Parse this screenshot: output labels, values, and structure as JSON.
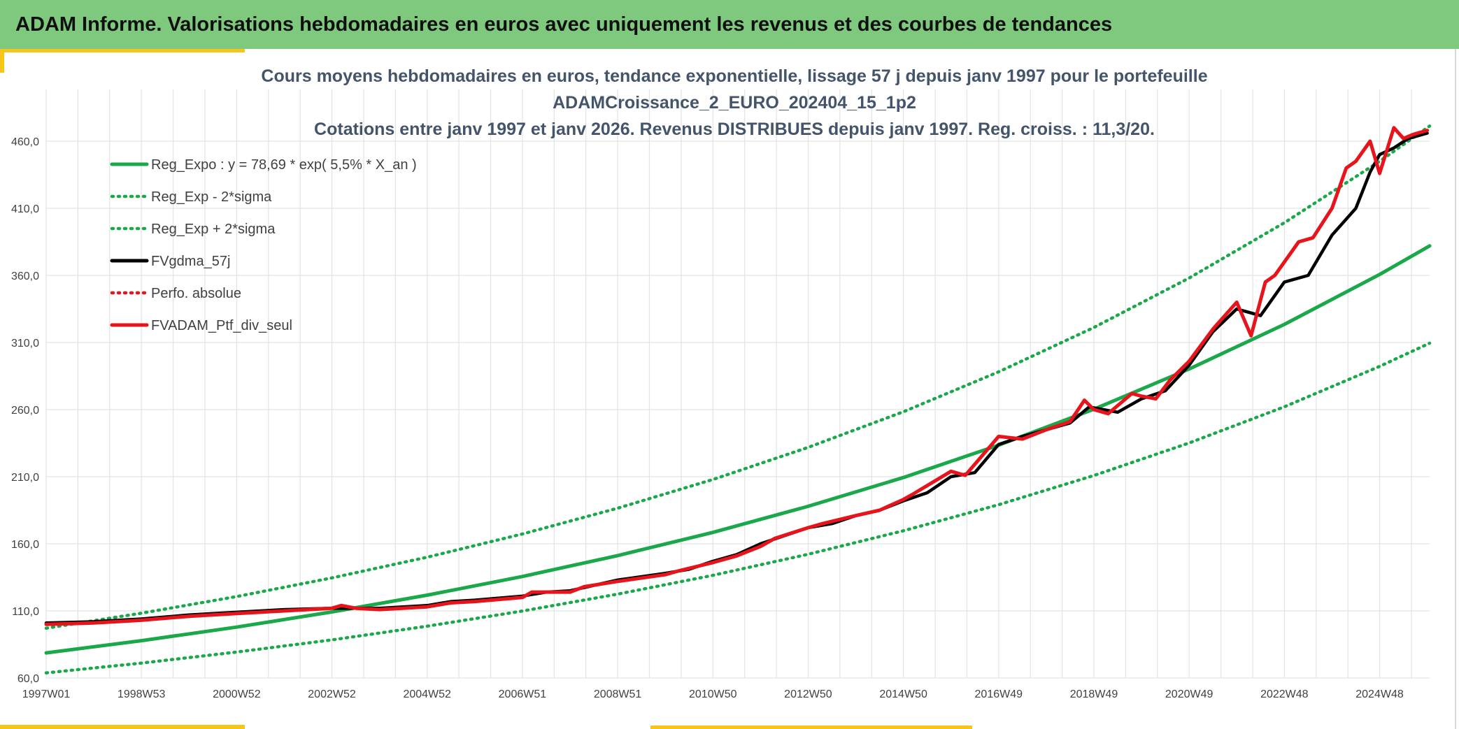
{
  "header": {
    "title": "ADAM Informe. Valorisations hebdomadaires en euros avec uniquement les revenus et des courbes de tendances"
  },
  "colors": {
    "header_bg": "#7fc97f",
    "accent": "#f5c518",
    "title_text": "#44546a",
    "reg_expo": "#1aa84a",
    "fvgdma": "#000000",
    "portfolio": "#e8141c"
  },
  "chart_data": {
    "type": "line",
    "title": [
      "Cours moyens hebdomadaires en euros, tendance exponentielle, lissage 57 j depuis janv 1997 pour le portefeuille",
      "ADAMCroissance_2_EURO_202404_15_1p2",
      "Cotations entre janv 1997 et janv 2026. Revenus DISTRIBUES depuis janv 1997. Reg. croiss. : 11,3/20."
    ],
    "xlabel": "",
    "ylabel": "",
    "x_range_years": [
      1997.0,
      2026.05
    ],
    "xticks": [
      {
        "label": "1997W01",
        "year": 1997.0
      },
      {
        "label": "1998W53",
        "year": 1999.0
      },
      {
        "label": "2000W52",
        "year": 2001.0
      },
      {
        "label": "2002W52",
        "year": 2003.0
      },
      {
        "label": "2004W52",
        "year": 2005.0
      },
      {
        "label": "2006W51",
        "year": 2007.0
      },
      {
        "label": "2008W51",
        "year": 2009.0
      },
      {
        "label": "2010W50",
        "year": 2011.0
      },
      {
        "label": "2012W50",
        "year": 2013.0
      },
      {
        "label": "2014W50",
        "year": 2015.0
      },
      {
        "label": "2016W49",
        "year": 2017.0
      },
      {
        "label": "2018W49",
        "year": 2019.0
      },
      {
        "label": "2020W49",
        "year": 2021.0
      },
      {
        "label": "2022W48",
        "year": 2023.0
      },
      {
        "label": "2024W48",
        "year": 2025.0
      }
    ],
    "yticks": [
      "60,0",
      "110,0",
      "160,0",
      "210,0",
      "260,0",
      "310,0",
      "360,0",
      "410,0",
      "460,0"
    ],
    "ylim": [
      60,
      460
    ],
    "grid": true,
    "legend_position": "top-left",
    "legend": [
      {
        "label": "Reg_Expo : y = 78,69 * exp( 5,5% *  X_an )",
        "style": "solid",
        "color": "#1aa84a"
      },
      {
        "label": "Reg_Exp - 2*sigma",
        "style": "dotted",
        "color": "#1aa84a"
      },
      {
        "label": "Reg_Exp + 2*sigma",
        "style": "dotted",
        "color": "#1aa84a"
      },
      {
        "label": "FVgdma_57j",
        "style": "solid",
        "color": "#000000"
      },
      {
        "label": "Perfo. absolue",
        "style": "dotted",
        "color": "#e8141c"
      },
      {
        "label": "FVADAM_Ptf_div_seul",
        "style": "solid",
        "color": "#e8141c"
      }
    ],
    "series": [
      {
        "name": "Reg_Expo : y = 78,69 * exp( 5,5% *  X_an )",
        "x": [
          1997.0,
          1999.0,
          2001.0,
          2003.0,
          2005.0,
          2007.0,
          2009.0,
          2011.0,
          2013.0,
          2015.0,
          2017.0,
          2019.0,
          2021.0,
          2023.0,
          2025.0,
          2026.05
        ],
        "y": [
          78.7,
          87.8,
          97.9,
          109.2,
          121.7,
          135.6,
          151.2,
          168.5,
          187.9,
          209.4,
          233.5,
          260.3,
          290.2,
          323.5,
          360.7,
          382.0
        ]
      },
      {
        "name": "Reg_Exp - 2*sigma",
        "x": [
          1997.0,
          1999.0,
          2001.0,
          2003.0,
          2005.0,
          2007.0,
          2009.0,
          2011.0,
          2013.0,
          2015.0,
          2017.0,
          2019.0,
          2021.0,
          2023.0,
          2025.0,
          2026.05
        ],
        "y": [
          63.8,
          71.1,
          79.3,
          88.4,
          98.6,
          109.9,
          122.5,
          136.5,
          152.2,
          169.7,
          189.1,
          210.9,
          235.1,
          262.1,
          292.2,
          309.5
        ]
      },
      {
        "name": "Reg_Exp + 2*sigma",
        "x": [
          1997.0,
          1999.0,
          2001.0,
          2003.0,
          2005.0,
          2007.0,
          2009.0,
          2011.0,
          2013.0,
          2015.0,
          2017.0,
          2019.0,
          2021.0,
          2023.0,
          2025.0,
          2026.05
        ],
        "y": [
          97.1,
          108.3,
          120.7,
          134.6,
          150.0,
          167.3,
          186.5,
          207.9,
          231.8,
          258.4,
          288.1,
          321.2,
          358.0,
          399.2,
          445.0,
          471.3
        ]
      },
      {
        "name": "FVgdma_57j",
        "x": [
          1997.0,
          1998.0,
          1999.0,
          2000.0,
          2001.0,
          2002.0,
          2003.0,
          2003.5,
          2004.0,
          2005.0,
          2005.5,
          2006.0,
          2007.0,
          2007.5,
          2008.0,
          2008.5,
          2009.0,
          2010.0,
          2010.5,
          2011.0,
          2011.5,
          2012.0,
          2012.5,
          2013.0,
          2013.5,
          2014.0,
          2014.5,
          2015.0,
          2015.5,
          2016.0,
          2016.5,
          2017.0,
          2017.5,
          2018.0,
          2018.5,
          2018.9,
          2019.5,
          2020.0,
          2020.5,
          2021.0,
          2021.5,
          2022.0,
          2022.5,
          2023.0,
          2023.5,
          2024.0,
          2024.5,
          2024.8,
          2025.0,
          2025.3,
          2025.6,
          2026.0
        ],
        "y": [
          101,
          102,
          104,
          107,
          109,
          111,
          112,
          112,
          112,
          114,
          117,
          118,
          121,
          124,
          125,
          129,
          133,
          138,
          141,
          147,
          152,
          160,
          166,
          172,
          175,
          181,
          185,
          192,
          198,
          210,
          213,
          234,
          240,
          245,
          250,
          262,
          258,
          268,
          274,
          293,
          318,
          335,
          330,
          355,
          360,
          390,
          410,
          437,
          450,
          455,
          462,
          466
        ]
      },
      {
        "name": "FVADAM_Ptf_div_seul",
        "x": [
          1997.0,
          1998.0,
          1999.0,
          2000.0,
          2001.0,
          2002.0,
          2003.0,
          2003.2,
          2003.5,
          2004.0,
          2005.0,
          2005.5,
          2006.0,
          2007.0,
          2007.2,
          2008.0,
          2008.3,
          2009.0,
          2010.0,
          2010.3,
          2011.0,
          2011.5,
          2012.0,
          2012.3,
          2013.0,
          2013.3,
          2014.0,
          2014.5,
          2015.0,
          2015.2,
          2016.0,
          2016.3,
          2017.0,
          2017.5,
          2018.0,
          2018.5,
          2018.8,
          2019.0,
          2019.3,
          2019.8,
          2020.0,
          2020.3,
          2020.6,
          2021.0,
          2021.5,
          2022.0,
          2022.3,
          2022.6,
          2022.8,
          2023.3,
          2023.6,
          2024.0,
          2024.3,
          2024.5,
          2024.8,
          2025.0,
          2025.3,
          2025.5,
          2025.7,
          2026.0
        ],
        "y": [
          100,
          101,
          103,
          106,
          108,
          110,
          112,
          114,
          112,
          111,
          113,
          116,
          117,
          120,
          124,
          124,
          128,
          132,
          137,
          140,
          146,
          151,
          158,
          164,
          172,
          175,
          181,
          185,
          193,
          197,
          214,
          211,
          240,
          238,
          245,
          251,
          267,
          260,
          257,
          272,
          270,
          268,
          282,
          296,
          320,
          340,
          315,
          355,
          360,
          385,
          388,
          410,
          440,
          445,
          460,
          436,
          470,
          462,
          465,
          468
        ]
      }
    ]
  }
}
